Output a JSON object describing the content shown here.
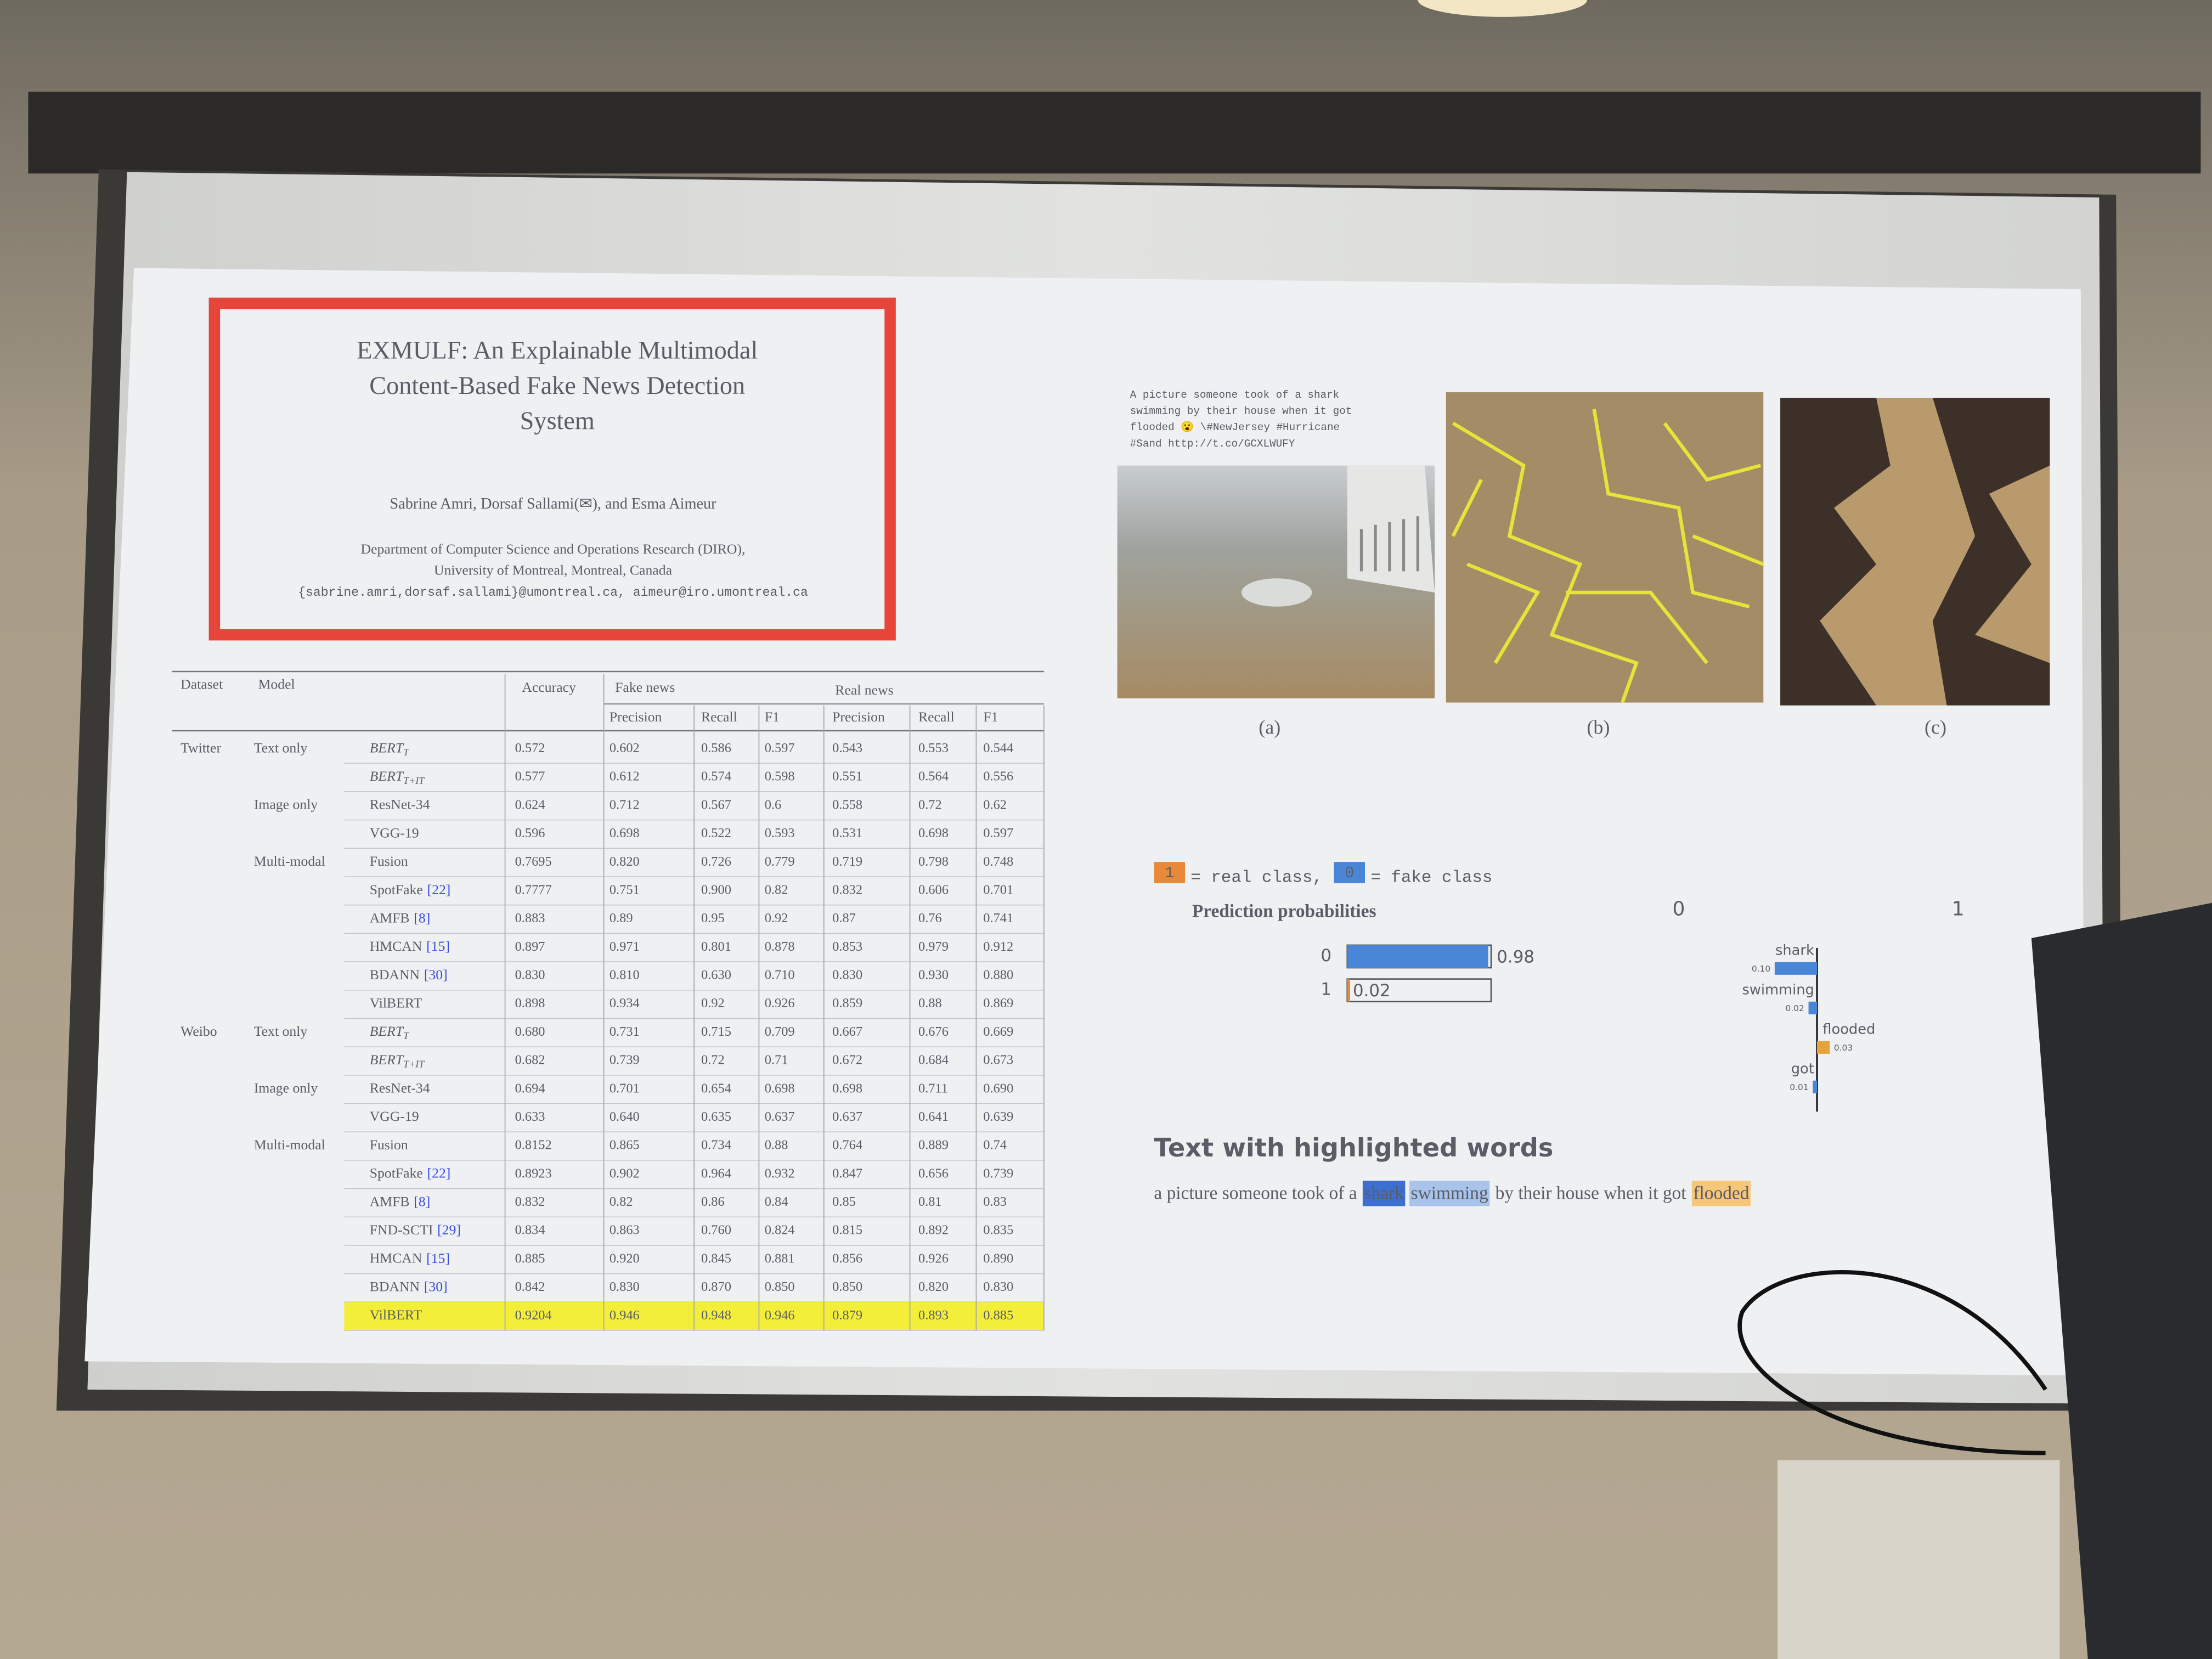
{
  "slide": {
    "title_lines": [
      "EXMULF: An Explainable Multimodal",
      "Content-Based Fake News Detection",
      "System"
    ],
    "authors": "Sabrine Amri, Dorsaf Sallami(✉), and Esma Aimeur",
    "affiliation": [
      "Department of Computer Science and Operations Research (DIRO),",
      "University of Montreal, Montreal, Canada",
      "{sabrine.amri,dorsaf.sallami}@umontreal.ca, aimeur@iro.umontreal.ca"
    ]
  },
  "table": {
    "header": {
      "dataset": "Dataset",
      "model": "Model",
      "accuracy": "Accuracy",
      "fake": "Fake news",
      "real": "Real news",
      "metrics": [
        "Precision",
        "Recall",
        "F1",
        "Precision",
        "Recall",
        "F1"
      ]
    },
    "datasets": [
      {
        "name": "Twitter",
        "groups": [
          {
            "name": "Text only",
            "models": [
              {
                "name": "BERT",
                "sub": "T",
                "values": [
                  "0.572",
                  "0.602",
                  "0.586",
                  "0.597",
                  "0.543",
                  "0.553",
                  "0.544"
                ]
              },
              {
                "name": "BERT",
                "sub": "T+IT",
                "values": [
                  "0.577",
                  "0.612",
                  "0.574",
                  "0.598",
                  "0.551",
                  "0.564",
                  "0.556"
                ]
              }
            ]
          },
          {
            "name": "Image only",
            "models": [
              {
                "name": "ResNet-34",
                "values": [
                  "0.624",
                  "0.712",
                  "0.567",
                  "0.6",
                  "0.558",
                  "0.72",
                  "0.62"
                ]
              },
              {
                "name": "VGG-19",
                "values": [
                  "0.596",
                  "0.698",
                  "0.522",
                  "0.593",
                  "0.531",
                  "0.698",
                  "0.597"
                ]
              }
            ]
          },
          {
            "name": "Multi-modal",
            "models": [
              {
                "name": "Fusion",
                "values": [
                  "0.7695",
                  "0.820",
                  "0.726",
                  "0.779",
                  "0.719",
                  "0.798",
                  "0.748"
                ]
              },
              {
                "name": "SpotFake",
                "ref": "[22]",
                "values": [
                  "0.7777",
                  "0.751",
                  "0.900",
                  "0.82",
                  "0.832",
                  "0.606",
                  "0.701"
                ]
              },
              {
                "name": "AMFB",
                "ref": "[8]",
                "values": [
                  "0.883",
                  "0.89",
                  "0.95",
                  "0.92",
                  "0.87",
                  "0.76",
                  "0.741"
                ]
              },
              {
                "name": "HMCAN",
                "ref": "[15]",
                "values": [
                  "0.897",
                  "0.971",
                  "0.801",
                  "0.878",
                  "0.853",
                  "0.979",
                  "0.912"
                ]
              },
              {
                "name": "BDANN",
                "ref": "[30]",
                "values": [
                  "0.830",
                  "0.810",
                  "0.630",
                  "0.710",
                  "0.830",
                  "0.930",
                  "0.880"
                ]
              },
              {
                "name": "VilBERT",
                "values": [
                  "0.898",
                  "0.934",
                  "0.92",
                  "0.926",
                  "0.859",
                  "0.88",
                  "0.869"
                ]
              }
            ]
          }
        ]
      },
      {
        "name": "Weibo",
        "groups": [
          {
            "name": "Text only",
            "models": [
              {
                "name": "BERT",
                "sub": "T",
                "values": [
                  "0.680",
                  "0.731",
                  "0.715",
                  "0.709",
                  "0.667",
                  "0.676",
                  "0.669"
                ]
              },
              {
                "name": "BERT",
                "sub": "T+IT",
                "values": [
                  "0.682",
                  "0.739",
                  "0.72",
                  "0.71",
                  "0.672",
                  "0.684",
                  "0.673"
                ]
              }
            ]
          },
          {
            "name": "Image only",
            "models": [
              {
                "name": "ResNet-34",
                "values": [
                  "0.694",
                  "0.701",
                  "0.654",
                  "0.698",
                  "0.698",
                  "0.711",
                  "0.690"
                ]
              },
              {
                "name": "VGG-19",
                "values": [
                  "0.633",
                  "0.640",
                  "0.635",
                  "0.637",
                  "0.637",
                  "0.641",
                  "0.639"
                ]
              }
            ]
          },
          {
            "name": "Multi-modal",
            "models": [
              {
                "name": "Fusion",
                "values": [
                  "0.8152",
                  "0.865",
                  "0.734",
                  "0.88",
                  "0.764",
                  "0.889",
                  "0.74"
                ]
              },
              {
                "name": "SpotFake",
                "ref": "[22]",
                "values": [
                  "0.8923",
                  "0.902",
                  "0.964",
                  "0.932",
                  "0.847",
                  "0.656",
                  "0.739"
                ]
              },
              {
                "name": "AMFB",
                "ref": "[8]",
                "values": [
                  "0.832",
                  "0.82",
                  "0.86",
                  "0.84",
                  "0.85",
                  "0.81",
                  "0.83"
                ]
              },
              {
                "name": "FND-SCTI",
                "ref": "[29]",
                "values": [
                  "0.834",
                  "0.863",
                  "0.760",
                  "0.824",
                  "0.815",
                  "0.892",
                  "0.835"
                ]
              },
              {
                "name": "HMCAN",
                "ref": "[15]",
                "values": [
                  "0.885",
                  "0.920",
                  "0.845",
                  "0.881",
                  "0.856",
                  "0.926",
                  "0.890"
                ]
              },
              {
                "name": "BDANN",
                "ref": "[30]",
                "values": [
                  "0.842",
                  "0.830",
                  "0.870",
                  "0.850",
                  "0.850",
                  "0.820",
                  "0.830"
                ]
              },
              {
                "name": "VilBERT",
                "highlight": "#f2ee3a",
                "values": [
                  "0.9204",
                  "0.946",
                  "0.948",
                  "0.946",
                  "0.879",
                  "0.893",
                  "0.885"
                ]
              }
            ]
          }
        ]
      }
    ]
  },
  "figure": {
    "tweet_lines": [
      "A picture someone took of a shark",
      "swimming by their house when it got",
      "flooded 😮 \\#NewJersey #Hurricane",
      "#Sand http://t.co/GCXLWUFY"
    ],
    "captions": [
      "(a)",
      "(b)",
      "(c)"
    ]
  },
  "explanation": {
    "legend": [
      {
        "box": "1",
        "text": "= real class,",
        "color": "#e8893a"
      },
      {
        "box": "0",
        "text": "= fake class",
        "color": "#4a86d8"
      }
    ],
    "prediction_title": "Prediction probabilities",
    "probabilities": [
      {
        "label": "0",
        "value": 0.98,
        "color": "#4a86d8"
      },
      {
        "label": "1",
        "value": 0.02,
        "color": "#e8893a"
      }
    ],
    "feature_sides": [
      {
        "label": "0",
        "color": "#4a86d8"
      },
      {
        "label": "1",
        "color": "#e8a23a"
      }
    ],
    "features": [
      {
        "word": "shark",
        "value": 0.1,
        "value_label": "0.10",
        "side": 0
      },
      {
        "word": "swimming",
        "value": 0.02,
        "value_label": "0.02",
        "side": 0
      },
      {
        "word": "flooded",
        "value": 0.03,
        "value_label": "0.03",
        "side": 1
      },
      {
        "word": "got",
        "value": 0.01,
        "value_label": "0.01",
        "side": 0
      }
    ],
    "text_title": "Text with highlighted words",
    "sentence": [
      {
        "text": "a picture someone took of a"
      },
      {
        "text": "shark",
        "highlight": "#3d6fcf"
      },
      {
        "text": "swimming",
        "highlight": "#a9c4ea"
      },
      {
        "text": "by their house when it got"
      },
      {
        "text": "flooded",
        "highlight": "#f6c77a"
      }
    ]
  }
}
